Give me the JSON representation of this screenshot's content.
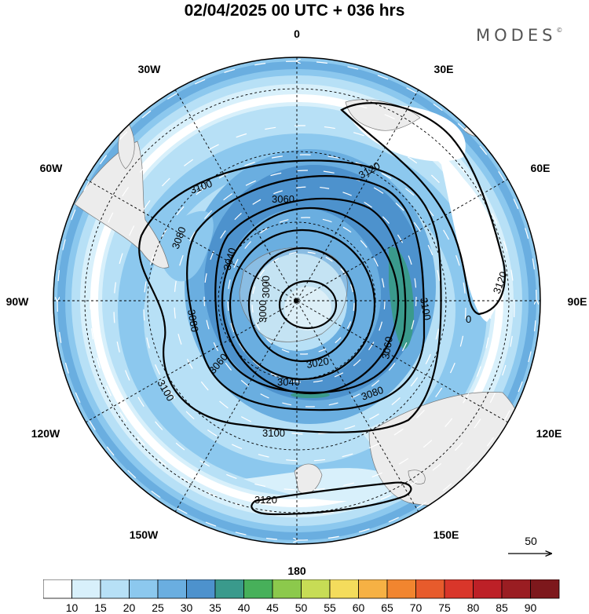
{
  "title": "02/04/2025  00 UTC  + 036 hrs",
  "brand": {
    "name": "MODES",
    "mark": "©"
  },
  "map": {
    "projection": "south polar stereographic",
    "meridian_labels": [
      {
        "text": "0",
        "lon": 0
      },
      {
        "text": "30E",
        "lon": 30
      },
      {
        "text": "60E",
        "lon": 60
      },
      {
        "text": "90E",
        "lon": 90
      },
      {
        "text": "120E",
        "lon": 120
      },
      {
        "text": "150E",
        "lon": 150
      },
      {
        "text": "180",
        "lon": 180
      },
      {
        "text": "150W",
        "lon": -150
      },
      {
        "text": "120W",
        "lon": -120
      },
      {
        "text": "90W",
        "lon": -90
      },
      {
        "text": "60W",
        "lon": -60
      },
      {
        "text": "30W",
        "lon": -30
      }
    ],
    "contour_labels": [
      "3120",
      "3120",
      "3100",
      "3060",
      "3080",
      "3040",
      "3080",
      "3060",
      "3100",
      "3100",
      "3060",
      "3020",
      "3040",
      "3080",
      "3100",
      "3120",
      "3000",
      "3000"
    ],
    "low_marker": "0",
    "vector_reference": "50"
  },
  "colorbar": {
    "ticks": [
      "10",
      "15",
      "20",
      "25",
      "30",
      "35",
      "40",
      "45",
      "50",
      "55",
      "60",
      "65",
      "70",
      "75",
      "80",
      "85",
      "90"
    ],
    "colors": [
      "#ffffff",
      "#d8f0fb",
      "#b7e0f6",
      "#8cc8ee",
      "#6aaee0",
      "#4d92cd",
      "#3a9a8c",
      "#47b05a",
      "#8cc94c",
      "#c7dc55",
      "#f4dc5c",
      "#f6b144",
      "#f1852f",
      "#e75b2c",
      "#d9362a",
      "#bd2027",
      "#9a1d22",
      "#7d181c"
    ]
  }
}
